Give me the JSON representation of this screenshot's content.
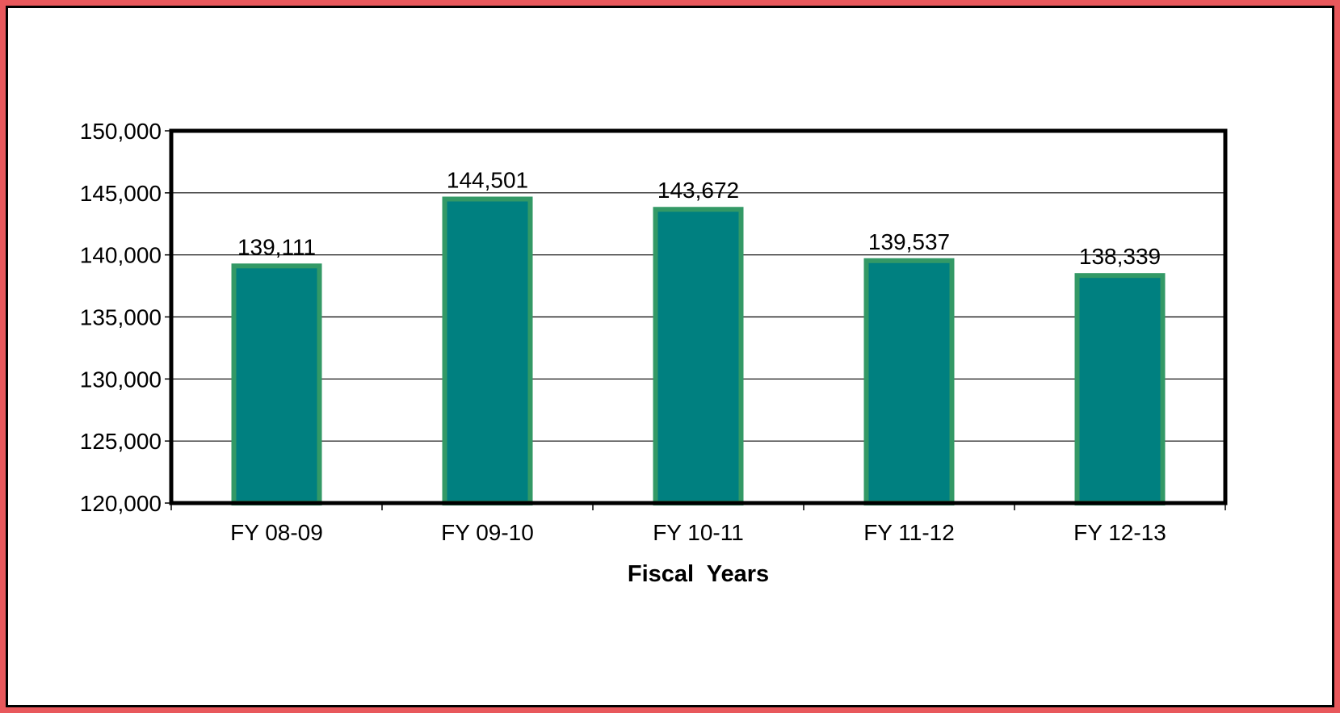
{
  "chart_data": {
    "type": "bar",
    "categories": [
      "FY 08-09",
      "FY 09-10",
      "FY 10-11",
      "FY 11-12",
      "FY 12-13"
    ],
    "values": [
      139111,
      144501,
      143672,
      139537,
      138339
    ],
    "data_labels": [
      "139,111",
      "144,501",
      "143,672",
      "139,537",
      "138,339"
    ],
    "title": "",
    "xlabel": "Fiscal  Years",
    "ylabel": "",
    "ylim": [
      120000,
      150000
    ],
    "yticks": [
      120000,
      125000,
      130000,
      135000,
      140000,
      145000,
      150000
    ],
    "ytick_labels": [
      "120,000",
      "125,000",
      "130,000",
      "135,000",
      "140,000",
      "145,000",
      "150,000"
    ],
    "grid": true,
    "legend": "none",
    "colors": {
      "bar_fill": "#008080",
      "bar_border": "#339966",
      "frame_border": "#e8585c",
      "gridline": "#000000"
    }
  }
}
